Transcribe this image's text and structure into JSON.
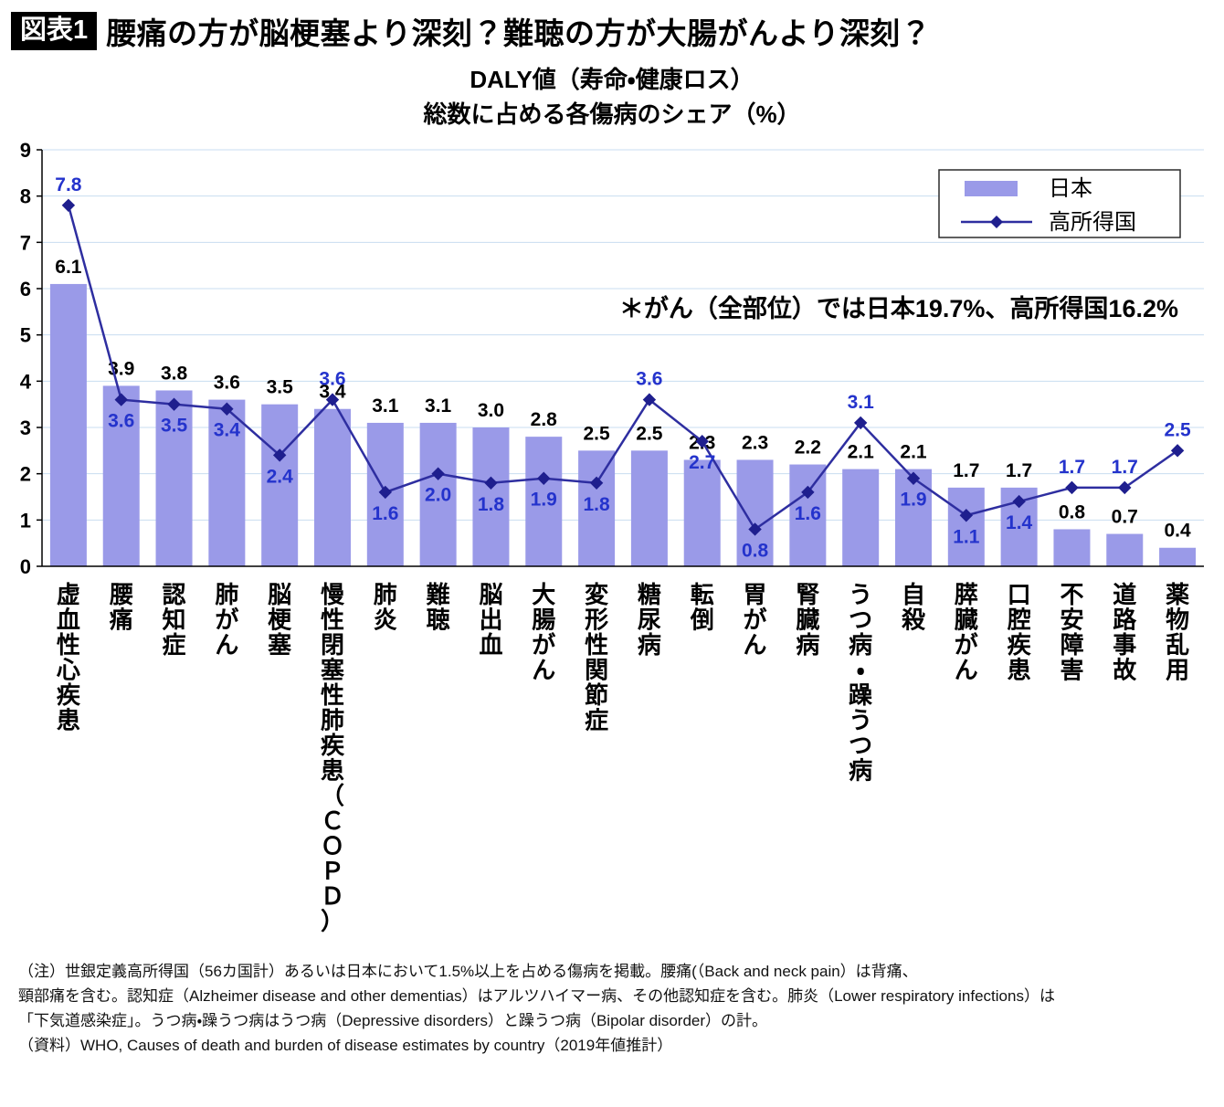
{
  "header": {
    "badge": "図表1",
    "title": "腰痛の方が脳梗塞より深刻？難聴の方が大腸がんより深刻？"
  },
  "chart_data": {
    "type": "bar",
    "title_lines": [
      "DALY値（寿命・健康ロス）",
      "総数に占める各傷病のシェア（%）"
    ],
    "annotation": "＊がん（全部位）では日本19.7%、高所得国16.2%",
    "ylim": [
      0,
      9
    ],
    "yticks": [
      0,
      1,
      2,
      3,
      4,
      5,
      6,
      7,
      8,
      9
    ],
    "grid": true,
    "legend_position": "top-right",
    "categories": [
      "虚血性心疾患",
      "腰痛",
      "認知症",
      "肺がん",
      "脳梗塞",
      "慢性閉塞性肺疾患（ＣＯＰＤ）",
      "肺炎",
      "難聴",
      "脳出血",
      "大腸がん",
      "変形性関節症",
      "糖尿病",
      "転倒",
      "胃がん",
      "腎臓病",
      "うつ病・躁うつ病",
      "自殺",
      "膵臓がん",
      "口腔疾患",
      "不安障害",
      "道路事故",
      "薬物乱用"
    ],
    "series": [
      {
        "name": "日本",
        "type": "bar",
        "color": "#9a9ae8",
        "label_color": "#000000",
        "values": [
          6.1,
          3.9,
          3.8,
          3.6,
          3.5,
          3.4,
          3.1,
          3.1,
          3.0,
          2.8,
          2.5,
          2.5,
          2.3,
          2.3,
          2.2,
          2.1,
          2.1,
          1.7,
          1.7,
          0.8,
          0.7,
          0.4
        ]
      },
      {
        "name": "高所得国",
        "type": "line",
        "color": "#2e2ea0",
        "marker_color": "#1f1f8e",
        "label_color": "#2433cc",
        "values": [
          7.8,
          3.6,
          3.5,
          3.4,
          2.4,
          3.6,
          1.6,
          2.0,
          1.8,
          1.9,
          1.8,
          3.6,
          2.7,
          0.8,
          1.6,
          3.1,
          1.9,
          1.1,
          1.4,
          1.7,
          1.7,
          2.5
        ],
        "label_pos": [
          "above",
          "below",
          "below",
          "below",
          "below",
          "above",
          "below",
          "below",
          "below",
          "below",
          "below",
          "above",
          "below",
          "below",
          "below",
          "above",
          "below",
          "below",
          "below",
          "above",
          "above",
          "above"
        ]
      }
    ],
    "grid_color": "#c8ddf0",
    "axis_color": "#000000"
  },
  "footnotes": [
    "（注）世銀定義高所得国（56カ国計）あるいは日本において1.5%以上を占める傷病を掲載。腰痛(（Back and neck pain）は背痛、",
    "頸部痛を含む。認知症（Alzheimer disease and other dementias）はアルツハイマー病、その他認知症を含む。肺炎（Lower respiratory infections）は",
    "「下気道感染症」。うつ病・躁うつ病はうつ病（Depressive disorders）と躁うつ病（Bipolar disorder）の計。",
    "（資料）WHO, Causes of death and burden of disease estimates by country（2019年値推計）"
  ]
}
